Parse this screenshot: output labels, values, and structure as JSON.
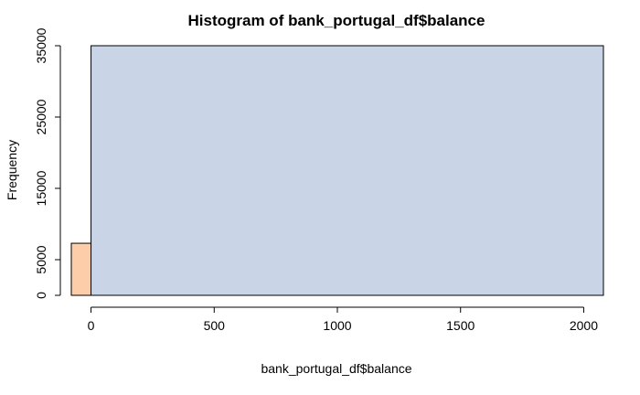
{
  "chart_data": {
    "type": "bar",
    "title": "Histogram of bank_portugal_df$balance",
    "xlabel": "bank_portugal_df$balance",
    "ylabel": "Frequency",
    "xlim": [
      -80,
      2080
    ],
    "ylim": [
      0,
      35000
    ],
    "x_ticks": [
      0,
      500,
      1000,
      1500,
      2000
    ],
    "x_tick_labels": [
      "0",
      "500",
      "1000",
      "1500",
      "2000"
    ],
    "y_ticks": [
      0,
      5000,
      15000,
      25000,
      35000
    ],
    "y_tick_labels": [
      "0",
      "5000",
      "15000",
      "25000",
      "35000"
    ],
    "grid": false,
    "legend": "none",
    "bins": [
      {
        "x_start": -80,
        "x_end": 0,
        "value": 7300,
        "color": "#fdcca8"
      },
      {
        "x_start": 0,
        "x_end": 2080,
        "value": 35000,
        "color": "#c9d5e6"
      }
    ]
  }
}
